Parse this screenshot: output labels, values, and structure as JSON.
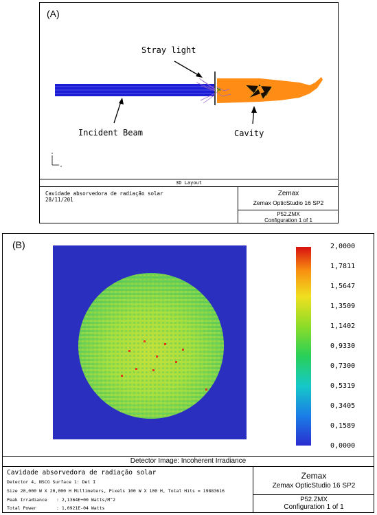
{
  "panel_a": {
    "label": "(A)",
    "callouts": {
      "stray_light": "Stray light",
      "incident_beam": "Incident Beam",
      "cavity": "Cavity"
    },
    "view_title": "3D Layout",
    "footer": {
      "description": "Cavidade absorvedora de radiação solar",
      "date": "28/11/201",
      "brand": "Zemax",
      "product": "Zemax OpticStudio 16 SP2",
      "file": "P52.ZMX",
      "configuration": "Configuration 1 of 1"
    },
    "colors": {
      "beam": "#1c1cd6",
      "cavity": "#ff8c14",
      "stray": "#9b63c7",
      "arrows": "#000000"
    }
  },
  "panel_b": {
    "label": "(B)",
    "colorbar_ticks": [
      "2,0000",
      "1,7811",
      "1,5647",
      "1,3509",
      "1,1402",
      "0,9330",
      "0,7300",
      "0,5319",
      "0,3405",
      "0,1589",
      "0,0000"
    ],
    "view_title": "Detector Image: Incoherent Irradiance",
    "footer": {
      "description": "Cavidade absorvedora de radiação solar",
      "detector": "Detector 4, NSCG Surface 1: Det I",
      "size": "Size 20,000 W X 20,000 H Millimeters, Pixels 100 W X 100 H, Total Hits = 19883616",
      "peak_label": "Peak Irradiance",
      "peak_value": ": 2,1364E+00 Watts/M^2",
      "power_label": "Total Power",
      "power_value": ": 1,0921E-04 Watts",
      "brand": "Zemax",
      "product": "Zemax OpticStudio 16 SP2",
      "file": "P52.ZMX",
      "configuration": "Configuration 1 of 1"
    },
    "colors": {
      "background": "#2b2fbf",
      "disc": "#8fdc3a"
    }
  }
}
